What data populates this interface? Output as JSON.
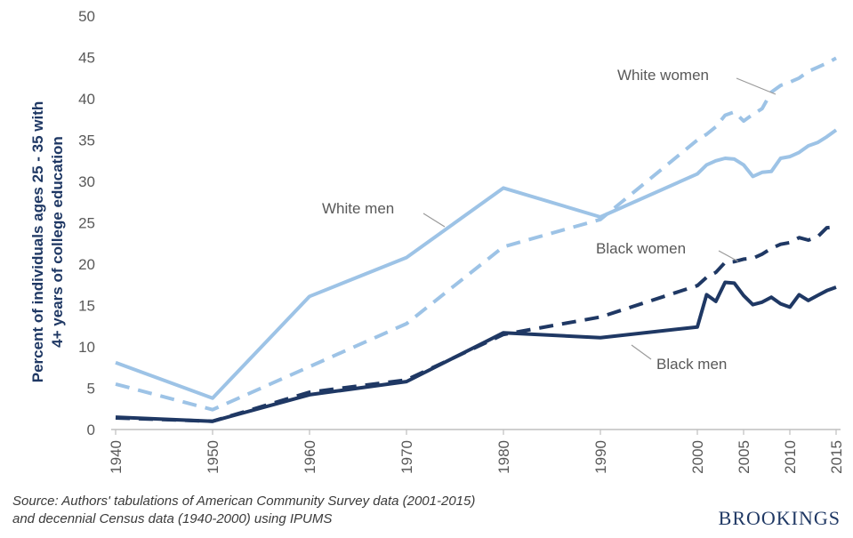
{
  "chart_data": {
    "type": "line",
    "ylabel_line1": "Percent of individuals ages 25 - 35 with",
    "ylabel_line2": "4+ years of college education",
    "ylim": [
      0,
      50
    ],
    "yticks": [
      0,
      5,
      10,
      15,
      20,
      25,
      30,
      35,
      40,
      45,
      50
    ],
    "xticks": [
      "1940",
      "1950",
      "1960",
      "1970",
      "1980",
      "1990",
      "2000",
      "2005",
      "2010",
      "2015"
    ],
    "series": [
      {
        "name": "White women",
        "color": "#9dc3e6",
        "dash": true,
        "points": [
          [
            1940,
            5.5
          ],
          [
            1950,
            2.4
          ],
          [
            1960,
            7.6
          ],
          [
            1970,
            12.8
          ],
          [
            1980,
            22.1
          ],
          [
            1990,
            25.4
          ],
          [
            2000,
            35.0
          ],
          [
            2001,
            35.7
          ],
          [
            2002,
            36.6
          ],
          [
            2003,
            38.0
          ],
          [
            2004,
            38.4
          ],
          [
            2005,
            37.3
          ],
          [
            2006,
            38.1
          ],
          [
            2007,
            38.8
          ],
          [
            2008,
            40.8
          ],
          [
            2009,
            41.6
          ],
          [
            2010,
            42.0
          ],
          [
            2011,
            42.5
          ],
          [
            2012,
            43.3
          ],
          [
            2013,
            43.8
          ],
          [
            2014,
            44.3
          ],
          [
            2015,
            44.9
          ]
        ]
      },
      {
        "name": "White men",
        "color": "#9dc3e6",
        "dash": false,
        "points": [
          [
            1940,
            8.1
          ],
          [
            1950,
            3.8
          ],
          [
            1960,
            16.1
          ],
          [
            1970,
            20.8
          ],
          [
            1980,
            29.2
          ],
          [
            1990,
            25.7
          ],
          [
            2000,
            30.9
          ],
          [
            2001,
            32.0
          ],
          [
            2002,
            32.5
          ],
          [
            2003,
            32.8
          ],
          [
            2004,
            32.7
          ],
          [
            2005,
            32.0
          ],
          [
            2006,
            30.6
          ],
          [
            2007,
            31.1
          ],
          [
            2008,
            31.2
          ],
          [
            2009,
            32.8
          ],
          [
            2010,
            33.0
          ],
          [
            2011,
            33.5
          ],
          [
            2012,
            34.3
          ],
          [
            2013,
            34.7
          ],
          [
            2014,
            35.4
          ],
          [
            2015,
            36.2
          ]
        ]
      },
      {
        "name": "Black women",
        "color": "#1f3864",
        "dash": true,
        "points": [
          [
            1940,
            1.4
          ],
          [
            1950,
            1.0
          ],
          [
            1960,
            4.5
          ],
          [
            1970,
            6.0
          ],
          [
            1980,
            11.5
          ],
          [
            1990,
            13.6
          ],
          [
            2000,
            17.4
          ],
          [
            2001,
            18.4
          ],
          [
            2002,
            19.0
          ],
          [
            2003,
            20.2
          ],
          [
            2004,
            20.3
          ],
          [
            2005,
            20.6
          ],
          [
            2006,
            20.7
          ],
          [
            2007,
            21.2
          ],
          [
            2008,
            21.9
          ],
          [
            2009,
            22.4
          ],
          [
            2010,
            22.6
          ],
          [
            2011,
            23.2
          ],
          [
            2012,
            22.9
          ],
          [
            2013,
            23.3
          ],
          [
            2014,
            24.4
          ],
          [
            2015,
            24.5
          ]
        ]
      },
      {
        "name": "Black men",
        "color": "#1f3864",
        "dash": false,
        "points": [
          [
            1940,
            1.5
          ],
          [
            1950,
            1.0
          ],
          [
            1960,
            4.2
          ],
          [
            1970,
            5.8
          ],
          [
            1980,
            11.7
          ],
          [
            1990,
            11.1
          ],
          [
            2000,
            12.4
          ],
          [
            2001,
            16.3
          ],
          [
            2002,
            15.5
          ],
          [
            2003,
            17.8
          ],
          [
            2004,
            17.7
          ],
          [
            2005,
            16.2
          ],
          [
            2006,
            15.1
          ],
          [
            2007,
            15.4
          ],
          [
            2008,
            16.0
          ],
          [
            2009,
            15.2
          ],
          [
            2010,
            14.8
          ],
          [
            2011,
            16.3
          ],
          [
            2012,
            15.6
          ],
          [
            2013,
            16.2
          ],
          [
            2014,
            16.8
          ],
          [
            2015,
            17.2
          ]
        ]
      }
    ],
    "annotations": [
      "White women",
      "White men",
      "Black women",
      "Black men"
    ]
  },
  "source_line1": "Source: Authors' tabulations of American Community Survey data (2001-2015)",
  "source_line2": "and decennial Census data (1940-2000) using IPUMS",
  "brand": "BROOKINGS"
}
